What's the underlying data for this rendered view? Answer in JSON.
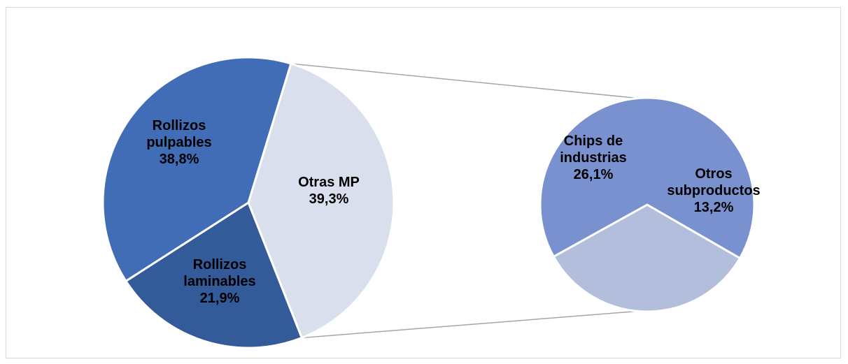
{
  "chart_data": {
    "type": "pie",
    "subtype": "pie-of-pie",
    "title": "",
    "main_pie": {
      "slices": [
        {
          "label_lines": [
            "Otras MP",
            "39,3%"
          ],
          "value": 39.3,
          "color": "#dadfed",
          "expanded": true
        },
        {
          "label_lines": [
            "Rollizos",
            "laminables",
            "21,9%"
          ],
          "value": 21.9,
          "color": "#335a99"
        },
        {
          "label_lines": [
            "Rollizos",
            "pulpables",
            "38,8%"
          ],
          "value": 38.8,
          "color": "#416db6"
        }
      ]
    },
    "secondary_pie": {
      "slices": [
        {
          "label_lines": [
            "Otros",
            "subproductos",
            "13,2%"
          ],
          "value": 13.2,
          "color": "#b3bedd"
        },
        {
          "label_lines": [
            "Chips de",
            "industrias",
            "26,1%"
          ],
          "value": 26.1,
          "color": "#7992cf"
        }
      ]
    },
    "connector_color": "#a6a6a6",
    "legend": "none",
    "grid": false
  }
}
